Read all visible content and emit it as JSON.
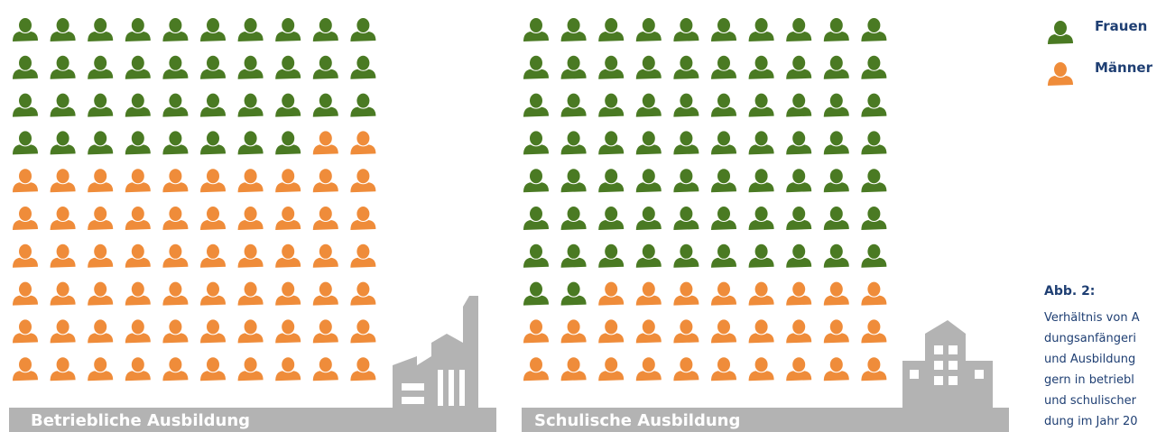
{
  "chart_data": [
    {
      "type": "waffle",
      "title": "Betriebliche Ausbildung",
      "columns": 10,
      "series": [
        {
          "name": "Frauen",
          "color": "#4a7a23",
          "values": [
            38
          ]
        },
        {
          "name": "Männer",
          "color": "#ef8c3a",
          "values": [
            62
          ]
        }
      ]
    },
    {
      "type": "waffle",
      "title": "Schulische Ausbildung",
      "columns": 10,
      "series": [
        {
          "name": "Frauen",
          "color": "#4a7a23",
          "values": [
            72
          ]
        },
        {
          "name": "Männer",
          "color": "#ef8c3a",
          "values": [
            28
          ]
        }
      ]
    }
  ],
  "caption": {
    "label": "Abb. 2:",
    "lines": [
      "Verhältnis von A",
      "dungsanfängeri",
      "und Ausbildung",
      "gern in betriebl",
      "und schulischer",
      "dung im Jahr 20"
    ]
  }
}
